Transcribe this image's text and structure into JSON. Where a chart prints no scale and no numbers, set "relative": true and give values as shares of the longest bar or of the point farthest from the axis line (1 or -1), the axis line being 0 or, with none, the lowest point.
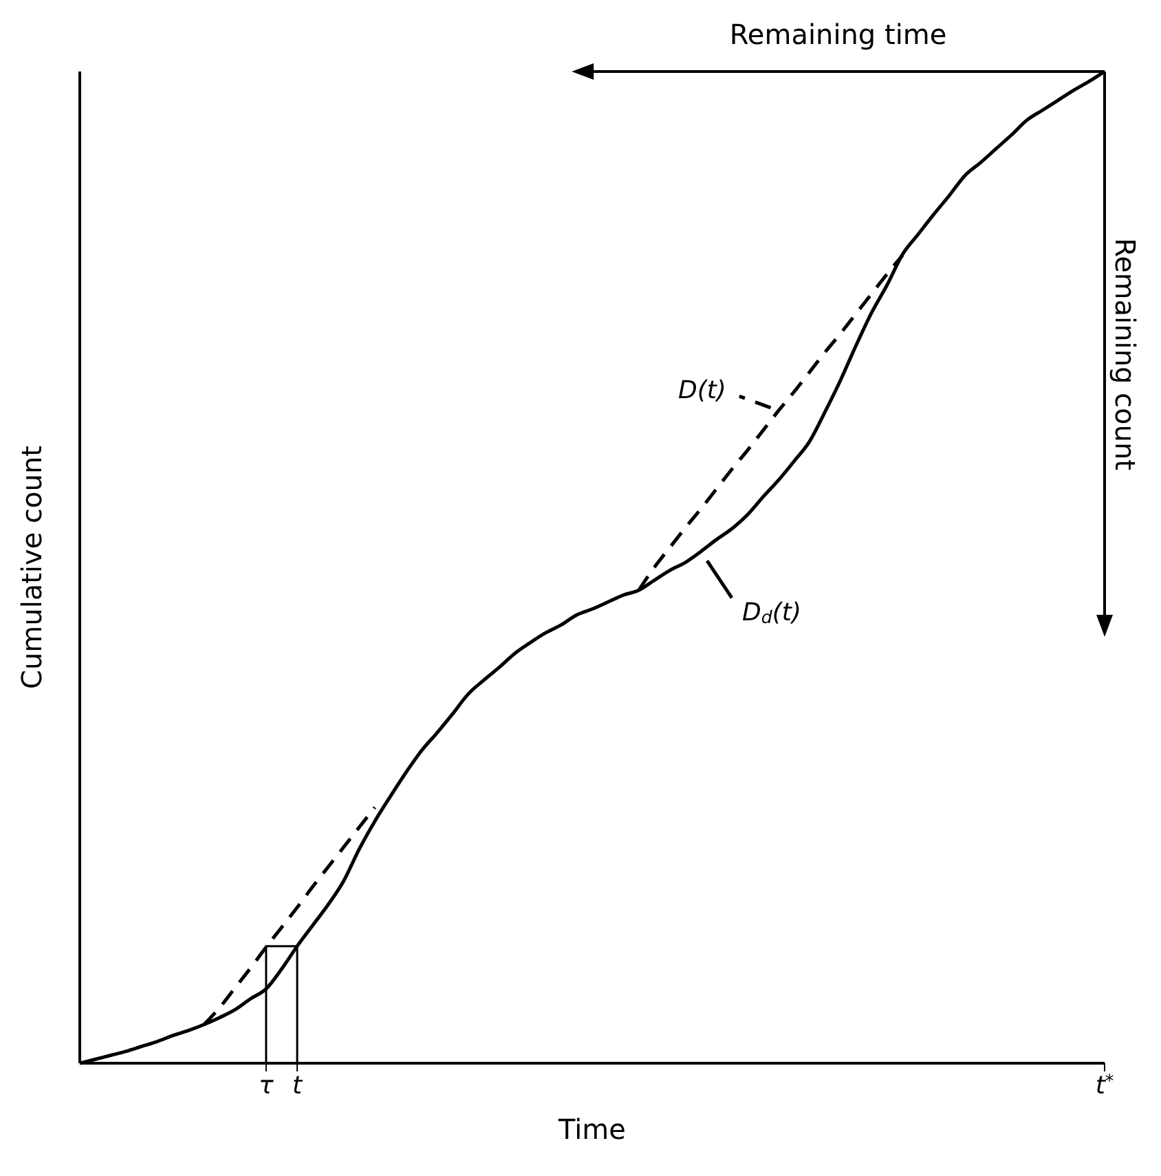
{
  "chart_data": {
    "type": "line",
    "xlabel": "Time",
    "ylabel": "Cumulative count",
    "annotations": [
      "Remaining time",
      "Remaining count"
    ],
    "relative": true,
    "marker": "none",
    "categories": [
      null,
      null,
      null,
      null,
      null,
      null,
      null,
      null,
      null,
      null,
      null,
      null,
      "τ",
      null,
      "t",
      null,
      null,
      null,
      null,
      null,
      null,
      null,
      null,
      null,
      null,
      null,
      null,
      null,
      null,
      null,
      null,
      null,
      null,
      null,
      null,
      null,
      null,
      null,
      null,
      null,
      null,
      null,
      null,
      null,
      null,
      null,
      null,
      null,
      null,
      null,
      null,
      null,
      null,
      null,
      null,
      null,
      null,
      null,
      null,
      null,
      null,
      null,
      null,
      null,
      null,
      null,
      "t$^{*}$"
    ],
    "series": [
      {
        "name": "D$_{d}$(t)",
        "color": "#000000",
        "line_style": "solid",
        "values": [
          0,
          0.004,
          0.008,
          0.012,
          0.017,
          0.022,
          0.028,
          0.033,
          0.039,
          0.046,
          0.054,
          0.065,
          0.075,
          0.095,
          0.118,
          0.139,
          0.16,
          0.184,
          0.216,
          0.244,
          0.269,
          0.293,
          0.315,
          0.333,
          0.352,
          0.372,
          0.386,
          0.399,
          0.413,
          0.424,
          0.434,
          0.442,
          0.452,
          0.458,
          0.465,
          0.472,
          0.477,
          0.487,
          0.497,
          0.505,
          0.516,
          0.528,
          0.539,
          0.553,
          0.571,
          0.588,
          0.607,
          0.627,
          0.657,
          0.689,
          0.724,
          0.757,
          0.785,
          0.816,
          0.836,
          0.856,
          0.875,
          0.895,
          0.908,
          0.922,
          0.936,
          0.951,
          0.961,
          0.971,
          0.981,
          0.99,
          1
        ]
      },
      {
        "name": "D(t)",
        "color": "#000000",
        "line_style": "dashed",
        "values": [
          null,
          null,
          null,
          null,
          null,
          null,
          null,
          null,
          0.039,
          0.056,
          0.076,
          0.096,
          0.117,
          0.137,
          0.157,
          0.178,
          0.198,
          0.218,
          0.238,
          0.258,
          null,
          null,
          null,
          null,
          null,
          null,
          null,
          null,
          null,
          null,
          null,
          null,
          null,
          null,
          null,
          null,
          0.477,
          0.5,
          0.52,
          0.54,
          0.559,
          0.579,
          0.599,
          0.618,
          0.638,
          0.658,
          0.677,
          0.697,
          0.717,
          0.736,
          0.756,
          0.776,
          0.796,
          0.815,
          null,
          null,
          null,
          null,
          null,
          null,
          null,
          null,
          null,
          null,
          null,
          null,
          null
        ]
      }
    ]
  }
}
